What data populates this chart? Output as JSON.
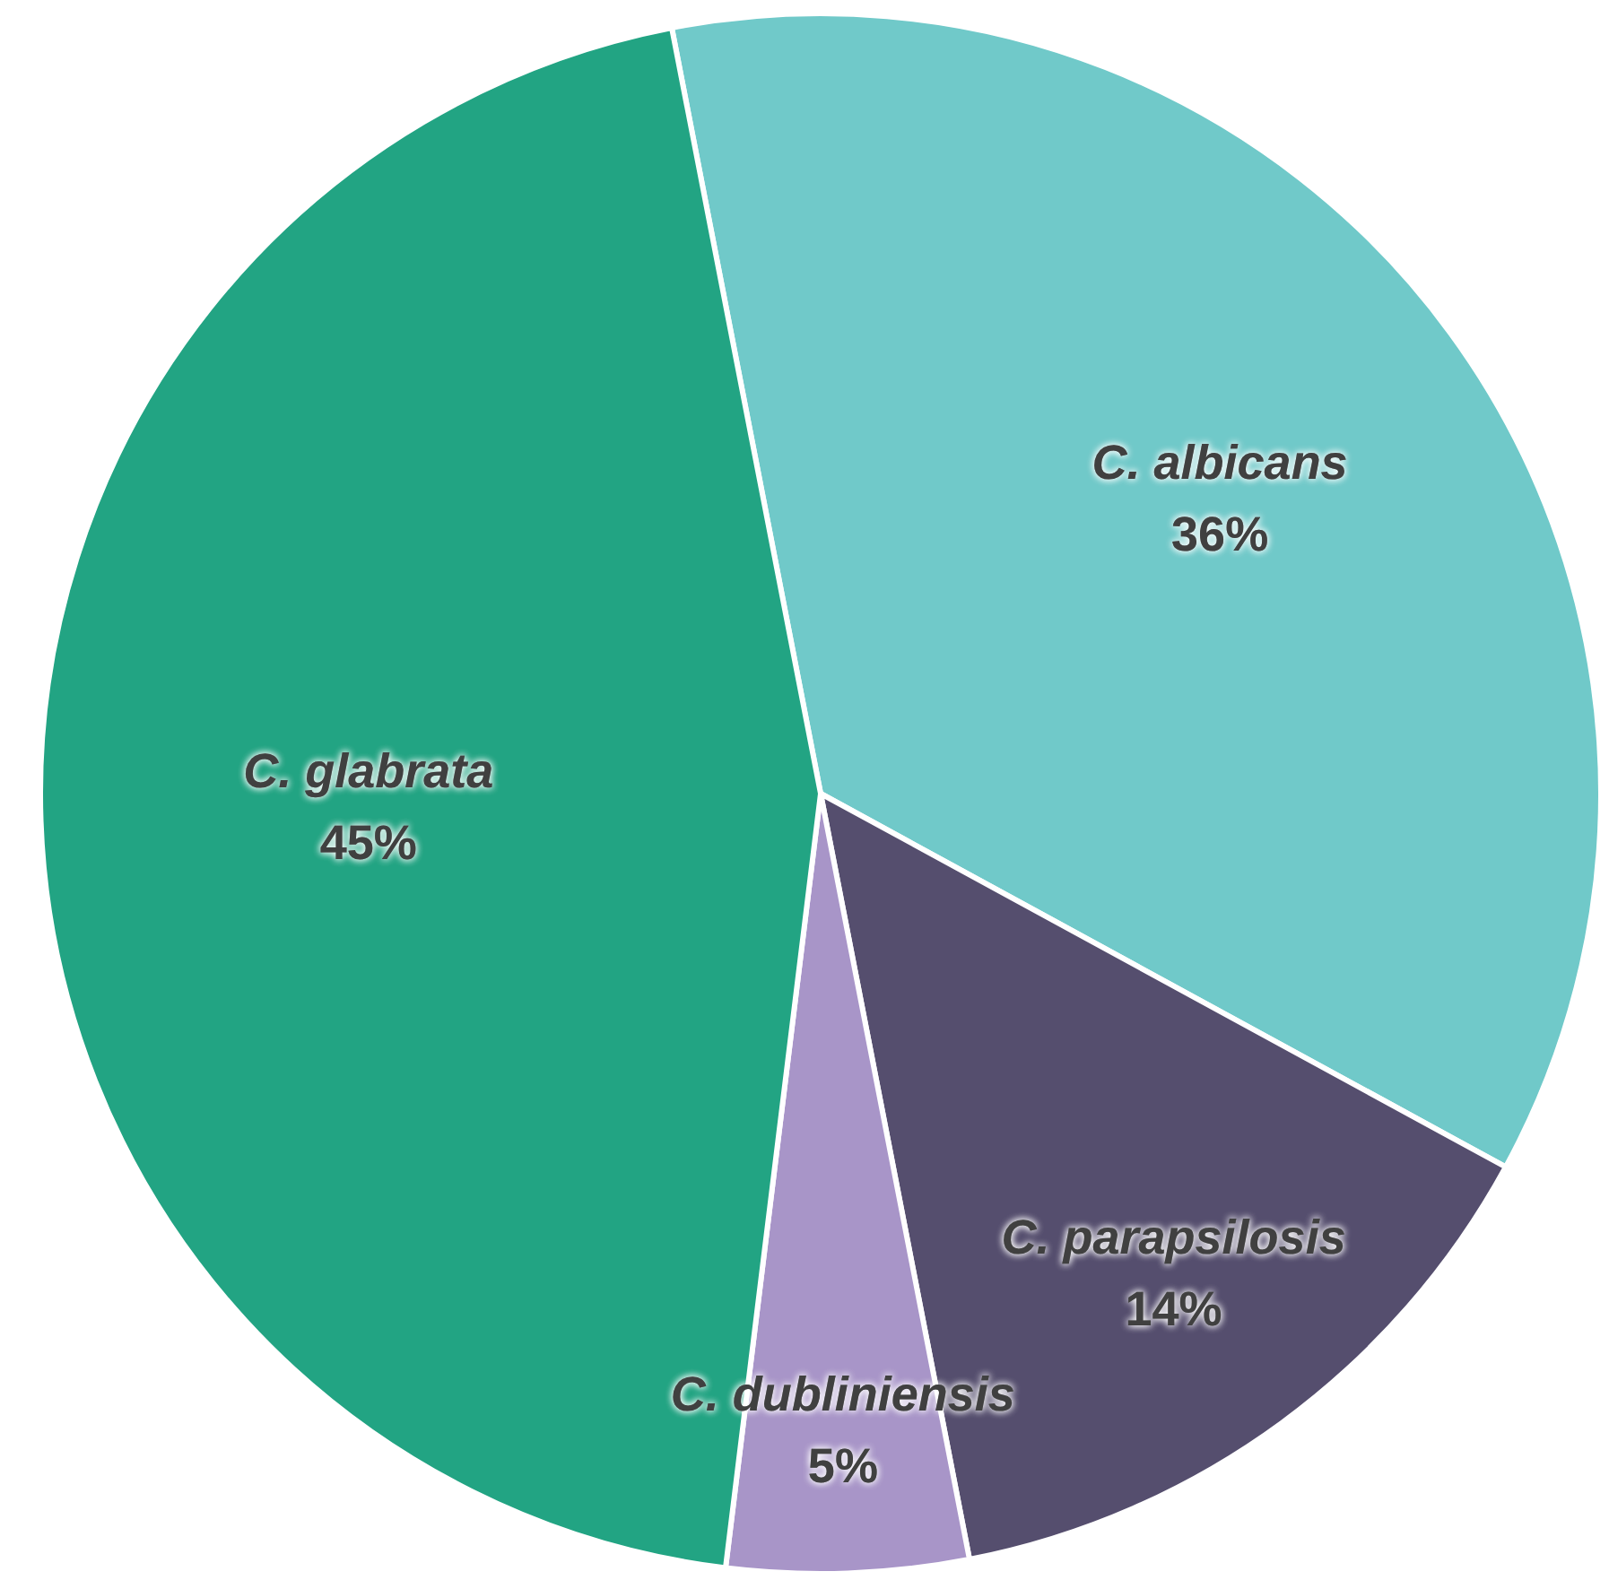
{
  "chart_data": {
    "type": "pie",
    "categories": [
      "C. albicans",
      "C. parapsilosis",
      "C. dubliniensis",
      "C. glabrata"
    ],
    "values": [
      36,
      14,
      5,
      45
    ],
    "value_labels": [
      "36%",
      "14%",
      "5%",
      "45%"
    ],
    "colors": [
      "#70c9c9",
      "#554e6e",
      "#a895c8",
      "#22a483"
    ],
    "legend": false
  }
}
